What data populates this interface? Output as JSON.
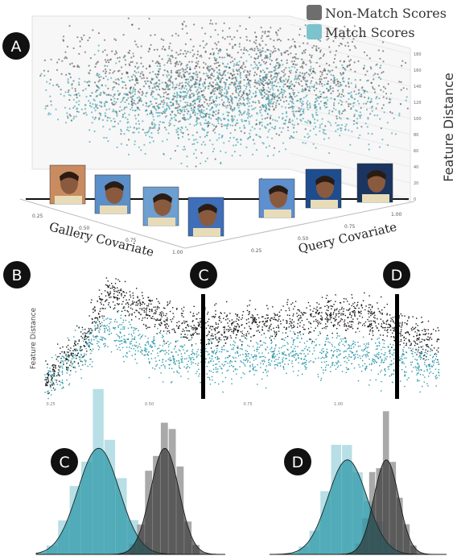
{
  "legend": {
    "items": [
      {
        "label": "Non-Match Scores",
        "color": "#555555"
      },
      {
        "label": "Match Scores",
        "color": "#6bb8c4"
      }
    ],
    "placement": "top-right"
  },
  "panel_labels": [
    "A",
    "B",
    "C",
    "D",
    "C",
    "D"
  ],
  "colors": {
    "non_match": "#3a3a3a",
    "match": "#2f9aa8",
    "match_light": "#9fd4dc",
    "non_match_light": "#8c8c8c",
    "badge": "#111111",
    "badge_text": "#ffffff"
  },
  "chart_data": [
    {
      "type": "scatter",
      "panel": "A",
      "title": "",
      "zlabel": "Feature Distance",
      "xlabel": "Gallery Covariate",
      "ylabel": "Query Covariate",
      "z_ticks": [
        "0",
        "20",
        "40",
        "60",
        "80",
        "100",
        "120",
        "140",
        "160",
        "180"
      ],
      "x_ticks": [
        "0.25",
        "0.50",
        "0.75",
        "1.00"
      ],
      "y_ticks": [
        "0.25",
        "0.50",
        "0.75",
        "1.00"
      ],
      "zlim": [
        0,
        190
      ],
      "series": [
        {
          "name": "Non-Match Scores",
          "mean_z": 130,
          "spread": 25
        },
        {
          "name": "Match Scores",
          "mean_z": 95,
          "spread": 22
        }
      ],
      "thumbnails": 7
    },
    {
      "type": "scatter",
      "panel": "B",
      "ylabel": "Feature Distance",
      "x_ticks": [
        "0.25",
        "0.50",
        "0.75",
        "1.00"
      ],
      "xlim": [
        0,
        1
      ],
      "ylim": [
        0,
        1
      ],
      "cuts": [
        {
          "label": "C",
          "x": 0.42
        },
        {
          "label": "D",
          "x": 0.91
        }
      ],
      "series": [
        {
          "name": "Non-Match Scores",
          "profile": [
            [
              0.0,
              0.15
            ],
            [
              0.1,
              0.45
            ],
            [
              0.16,
              0.85
            ],
            [
              0.22,
              0.75
            ],
            [
              0.3,
              0.62
            ],
            [
              0.42,
              0.55
            ],
            [
              0.55,
              0.58
            ],
            [
              0.7,
              0.66
            ],
            [
              0.8,
              0.64
            ],
            [
              0.9,
              0.55
            ],
            [
              1.0,
              0.42
            ]
          ]
        },
        {
          "name": "Match Scores",
          "profile": [
            [
              0.0,
              0.12
            ],
            [
              0.1,
              0.38
            ],
            [
              0.16,
              0.55
            ],
            [
              0.22,
              0.45
            ],
            [
              0.3,
              0.35
            ],
            [
              0.42,
              0.3
            ],
            [
              0.55,
              0.34
            ],
            [
              0.7,
              0.36
            ],
            [
              0.8,
              0.34
            ],
            [
              0.9,
              0.3
            ],
            [
              1.0,
              0.25
            ]
          ]
        }
      ]
    },
    {
      "type": "area",
      "panel": "C",
      "series": [
        {
          "name": "Match Scores",
          "mean": 0.33,
          "sd": 0.11
        },
        {
          "name": "Non-Match Scores",
          "mean": 0.68,
          "sd": 0.075
        }
      ]
    },
    {
      "type": "area",
      "panel": "D",
      "series": [
        {
          "name": "Match Scores",
          "mean": 0.44,
          "sd": 0.11
        },
        {
          "name": "Non-Match Scores",
          "mean": 0.66,
          "sd": 0.07
        }
      ]
    }
  ]
}
